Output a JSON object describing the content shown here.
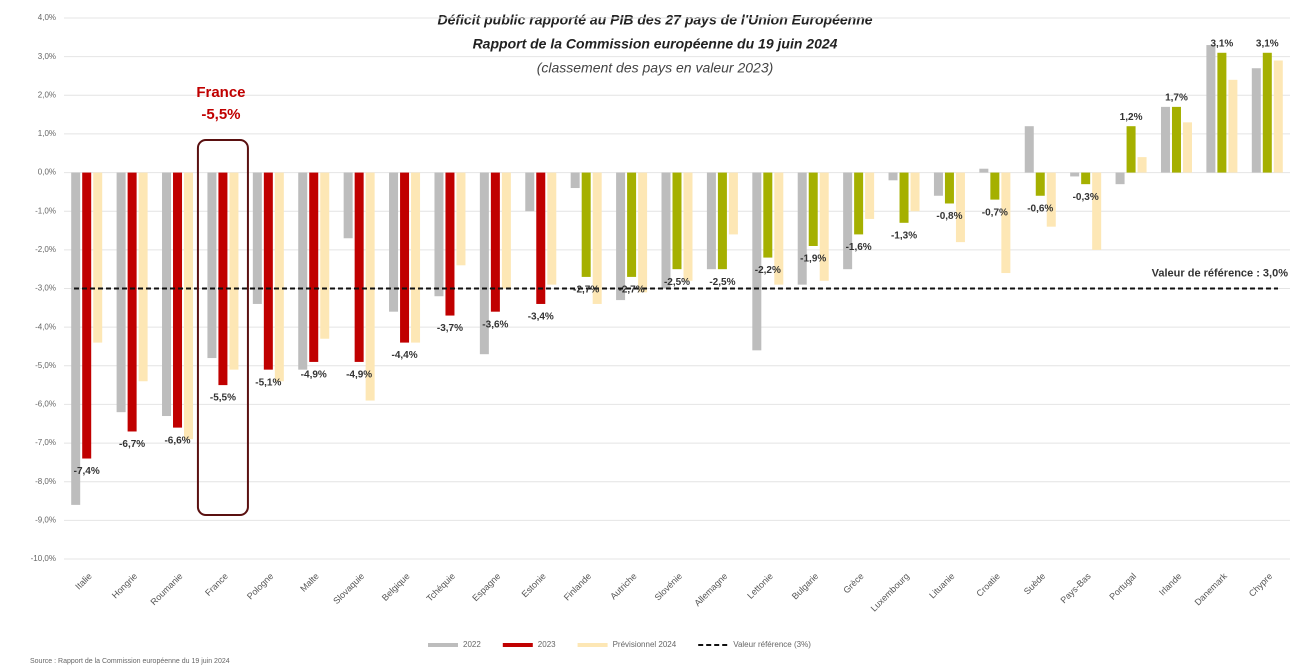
{
  "chart_data": {
    "type": "bar",
    "title": "Déficit public rapporté au PIB des 27 pays de l'Union Européenne",
    "subtitle": "Rapport de la Commission européenne du 19 juin 2024",
    "subtitle2": "(classement des pays en valeur 2023)",
    "source": "Source : Rapport de la Commission européenne du 19 juin 2024",
    "annotation": {
      "title": "France",
      "value": -5.5,
      "label": "-5,5%"
    },
    "reference": {
      "value": -3.0,
      "label": "Valeur de référence : 3,0%",
      "legend": "Valeur référence (3%)"
    },
    "categories": [
      "Italie",
      "Hongrie",
      "Roumanie",
      "France",
      "Pologne",
      "Malte",
      "Slovaquie",
      "Belgique",
      "Tchéquie",
      "Espagne",
      "Estonie",
      "Finlande",
      "Autriche",
      "Slovénie",
      "Allemagne",
      "Lettonie",
      "Bulgarie",
      "Grèce",
      "Luxembourg",
      "Lituanie",
      "Croatie",
      "Suède",
      "Pays-Bas",
      "Portugal",
      "Irlande",
      "Danemark",
      "Chypre"
    ],
    "series": [
      {
        "name": "2022",
        "color": "#bdbdbd",
        "values": [
          -8.6,
          -6.2,
          -6.3,
          -4.8,
          -3.4,
          -5.1,
          -1.7,
          -3.6,
          -3.2,
          -4.7,
          -1.0,
          -0.4,
          -3.3,
          -3.0,
          -2.5,
          -4.6,
          -2.9,
          -2.5,
          -0.2,
          -0.6,
          0.1,
          1.2,
          -0.1,
          -0.3,
          1.7,
          3.3,
          2.7
        ]
      },
      {
        "name": "2023",
        "color": "#c00000",
        "colors": [
          "#c00000",
          "#c00000",
          "#c00000",
          "#c00000",
          "#c00000",
          "#c00000",
          "#c00000",
          "#c00000",
          "#c00000",
          "#c00000",
          "#c00000",
          "#a5b000",
          "#a5b000",
          "#a5b000",
          "#a5b000",
          "#a5b000",
          "#a5b000",
          "#a5b000",
          "#a5b000",
          "#a5b000",
          "#a5b000",
          "#a5b000",
          "#a5b000",
          "#a5b000",
          "#a5b000",
          "#a5b000",
          "#a5b000"
        ],
        "values": [
          -7.4,
          -6.7,
          -6.6,
          -5.5,
          -5.1,
          -4.9,
          -4.9,
          -4.4,
          -3.7,
          -3.6,
          -3.4,
          -2.7,
          -2.7,
          -2.5,
          -2.5,
          -2.2,
          -1.9,
          -1.6,
          -1.3,
          -0.8,
          -0.7,
          -0.6,
          -0.3,
          1.2,
          1.7,
          3.1,
          3.1
        ],
        "value_labels": [
          "-7,4%",
          "-6,7%",
          "-6,6%",
          "-5,5%",
          "-5,1%",
          "-4,9%",
          "-4,9%",
          "-4,4%",
          "-3,7%",
          "-3,6%",
          "-3,4%",
          "-2,7%",
          "-2,7%",
          "-2,5%",
          "-2,5%",
          "-2,2%",
          "-1,9%",
          "-1,6%",
          "-1,3%",
          "-0,8%",
          "-0,7%",
          "-0,6%",
          "-0,3%",
          "1,2%",
          "1,7%",
          "3,1%",
          "3,1%"
        ]
      },
      {
        "name": "Prévisionnel 2024",
        "color": "#fde7b5",
        "values": [
          -4.4,
          -5.4,
          -6.9,
          -5.1,
          -5.4,
          -4.3,
          -5.9,
          -4.4,
          -2.4,
          -3.0,
          -2.9,
          -3.4,
          -3.1,
          -2.8,
          -1.6,
          -2.9,
          -2.8,
          -1.2,
          -1.0,
          -1.8,
          -2.6,
          -1.4,
          -2.0,
          0.4,
          1.3,
          2.4,
          2.9
        ]
      }
    ],
    "ylim": [
      -10,
      4
    ],
    "yticks": [
      {
        "value": 4,
        "label": "4,0%"
      },
      {
        "value": 3,
        "label": "3,0%"
      },
      {
        "value": 2,
        "label": "2,0%"
      },
      {
        "value": 1,
        "label": "1,0%"
      },
      {
        "value": 0,
        "label": "0,0%"
      },
      {
        "value": -1,
        "label": "-1,0%"
      },
      {
        "value": -2,
        "label": "-2,0%"
      },
      {
        "value": -3,
        "label": "-3,0%"
      },
      {
        "value": -4,
        "label": "-4,0%"
      },
      {
        "value": -5,
        "label": "-5,0%"
      },
      {
        "value": -6,
        "label": "-6,0%"
      },
      {
        "value": -7,
        "label": "-7,0%"
      },
      {
        "value": -8,
        "label": "-8,0%"
      },
      {
        "value": -9,
        "label": "-9,0%"
      },
      {
        "value": -10,
        "label": "-10,0%"
      }
    ],
    "grid": true
  }
}
